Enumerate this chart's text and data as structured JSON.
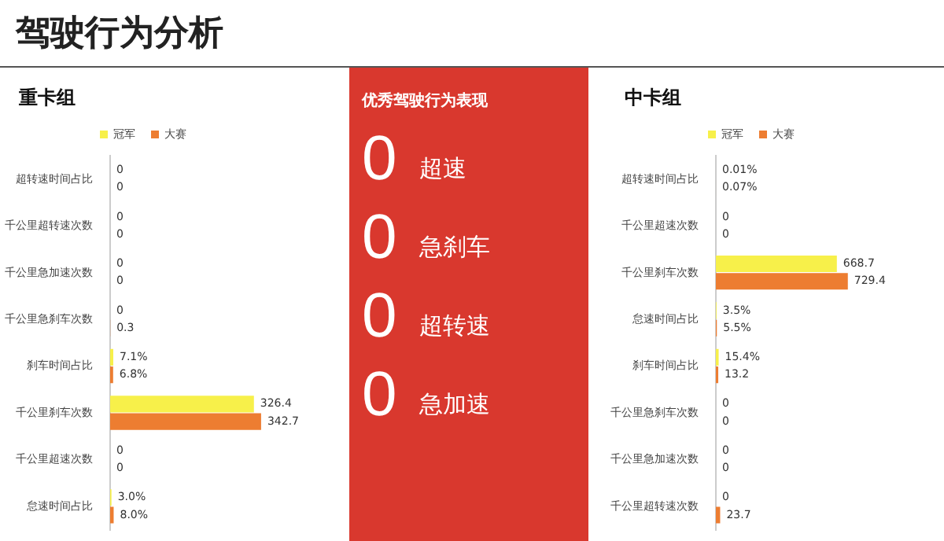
{
  "chart_data": [
    {
      "type": "bar",
      "title": "驾驶行为分析",
      "subtitle": "重卡组",
      "orientation": "horizontal",
      "legend": "top",
      "tick_labels": "y",
      "categories": [
        "超转速时间占比",
        "千公里超转速次数",
        "千公里急加速次数",
        "千公里急刹车次数",
        "刹车时间占比",
        "千公里刹车次数",
        "千公里超速次数",
        "怠速时间占比"
      ],
      "series": [
        {
          "name": "冠军",
          "color": "#f7f04a",
          "values": [
            0,
            0,
            0,
            0,
            7.1,
            326.4,
            0,
            3.0
          ],
          "value_labels": [
            "0",
            "0",
            "0",
            "0",
            "7.1%",
            "326.4",
            "0",
            "3.0%"
          ]
        },
        {
          "name": "大赛",
          "color": "#ed7d31",
          "values": [
            0,
            0,
            0,
            0.3,
            6.8,
            342.7,
            0,
            8.0
          ],
          "value_labels": [
            "0",
            "0",
            "0",
            "0.3",
            "6.8%",
            "342.7",
            "0",
            "8.0%"
          ]
        }
      ]
    },
    {
      "type": "other",
      "title": "优秀驾驶行为表现",
      "categories": [
        "超速",
        "急刹车",
        "超转速",
        "急加速"
      ],
      "values": [
        0,
        0,
        0,
        0
      ],
      "data_labels": true,
      "color": "#d9382e"
    },
    {
      "type": "bar",
      "title": "中卡组",
      "orientation": "horizontal",
      "legend": "top",
      "tick_labels": "y",
      "categories": [
        "超转速时间占比",
        "千公里超速次数",
        "千公里刹车次数",
        "怠速时间占比",
        "刹车时间占比",
        "千公里急刹车次数",
        "千公里急加速次数",
        "千公里超转速次数"
      ],
      "series": [
        {
          "name": "冠军",
          "color": "#f7f04a",
          "values": [
            0.01,
            0,
            668.7,
            3.5,
            15.4,
            0,
            0,
            0
          ],
          "value_labels": [
            "0.01%",
            "0",
            "668.7",
            "3.5%",
            "15.4%",
            "0",
            "0",
            "0"
          ]
        },
        {
          "name": "大赛",
          "color": "#ed7d31",
          "values": [
            0.07,
            0,
            729.4,
            5.5,
            13.2,
            0,
            0,
            23.7
          ],
          "value_labels": [
            "0.07%",
            "0",
            "729.4",
            "5.5%",
            "13.2",
            "0",
            "0",
            "23.7"
          ]
        }
      ]
    }
  ]
}
